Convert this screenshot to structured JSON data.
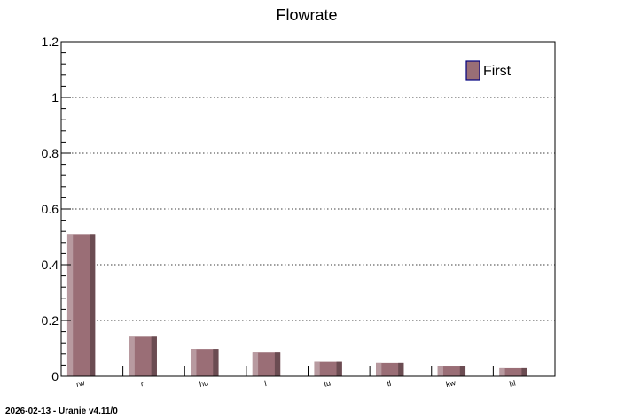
{
  "chart_data": {
    "type": "bar",
    "title": "Flowrate",
    "xlabel": "",
    "ylabel": "",
    "categories": [
      "rw",
      "r",
      "hu",
      "l",
      "tu",
      "tl",
      "kw",
      "hl"
    ],
    "series": [
      {
        "name": "First",
        "values": [
          0.51,
          0.145,
          0.098,
          0.085,
          0.052,
          0.048,
          0.038,
          0.032
        ]
      }
    ],
    "ylim": [
      0,
      1.2
    ],
    "yticks": [
      "0",
      "0.2",
      "0.4",
      "0.6",
      "0.8",
      "1",
      "1.2"
    ],
    "grid": "horizontal dotted",
    "legend_position": "top-right",
    "colors": {
      "bar_face": "#9a6e76",
      "bar_light": "#b89aa0",
      "bar_dark": "#6b4c52",
      "legend_border": "#000080"
    }
  },
  "footer": {
    "text": "2026-02-13 - Uranie v4.11/0"
  }
}
